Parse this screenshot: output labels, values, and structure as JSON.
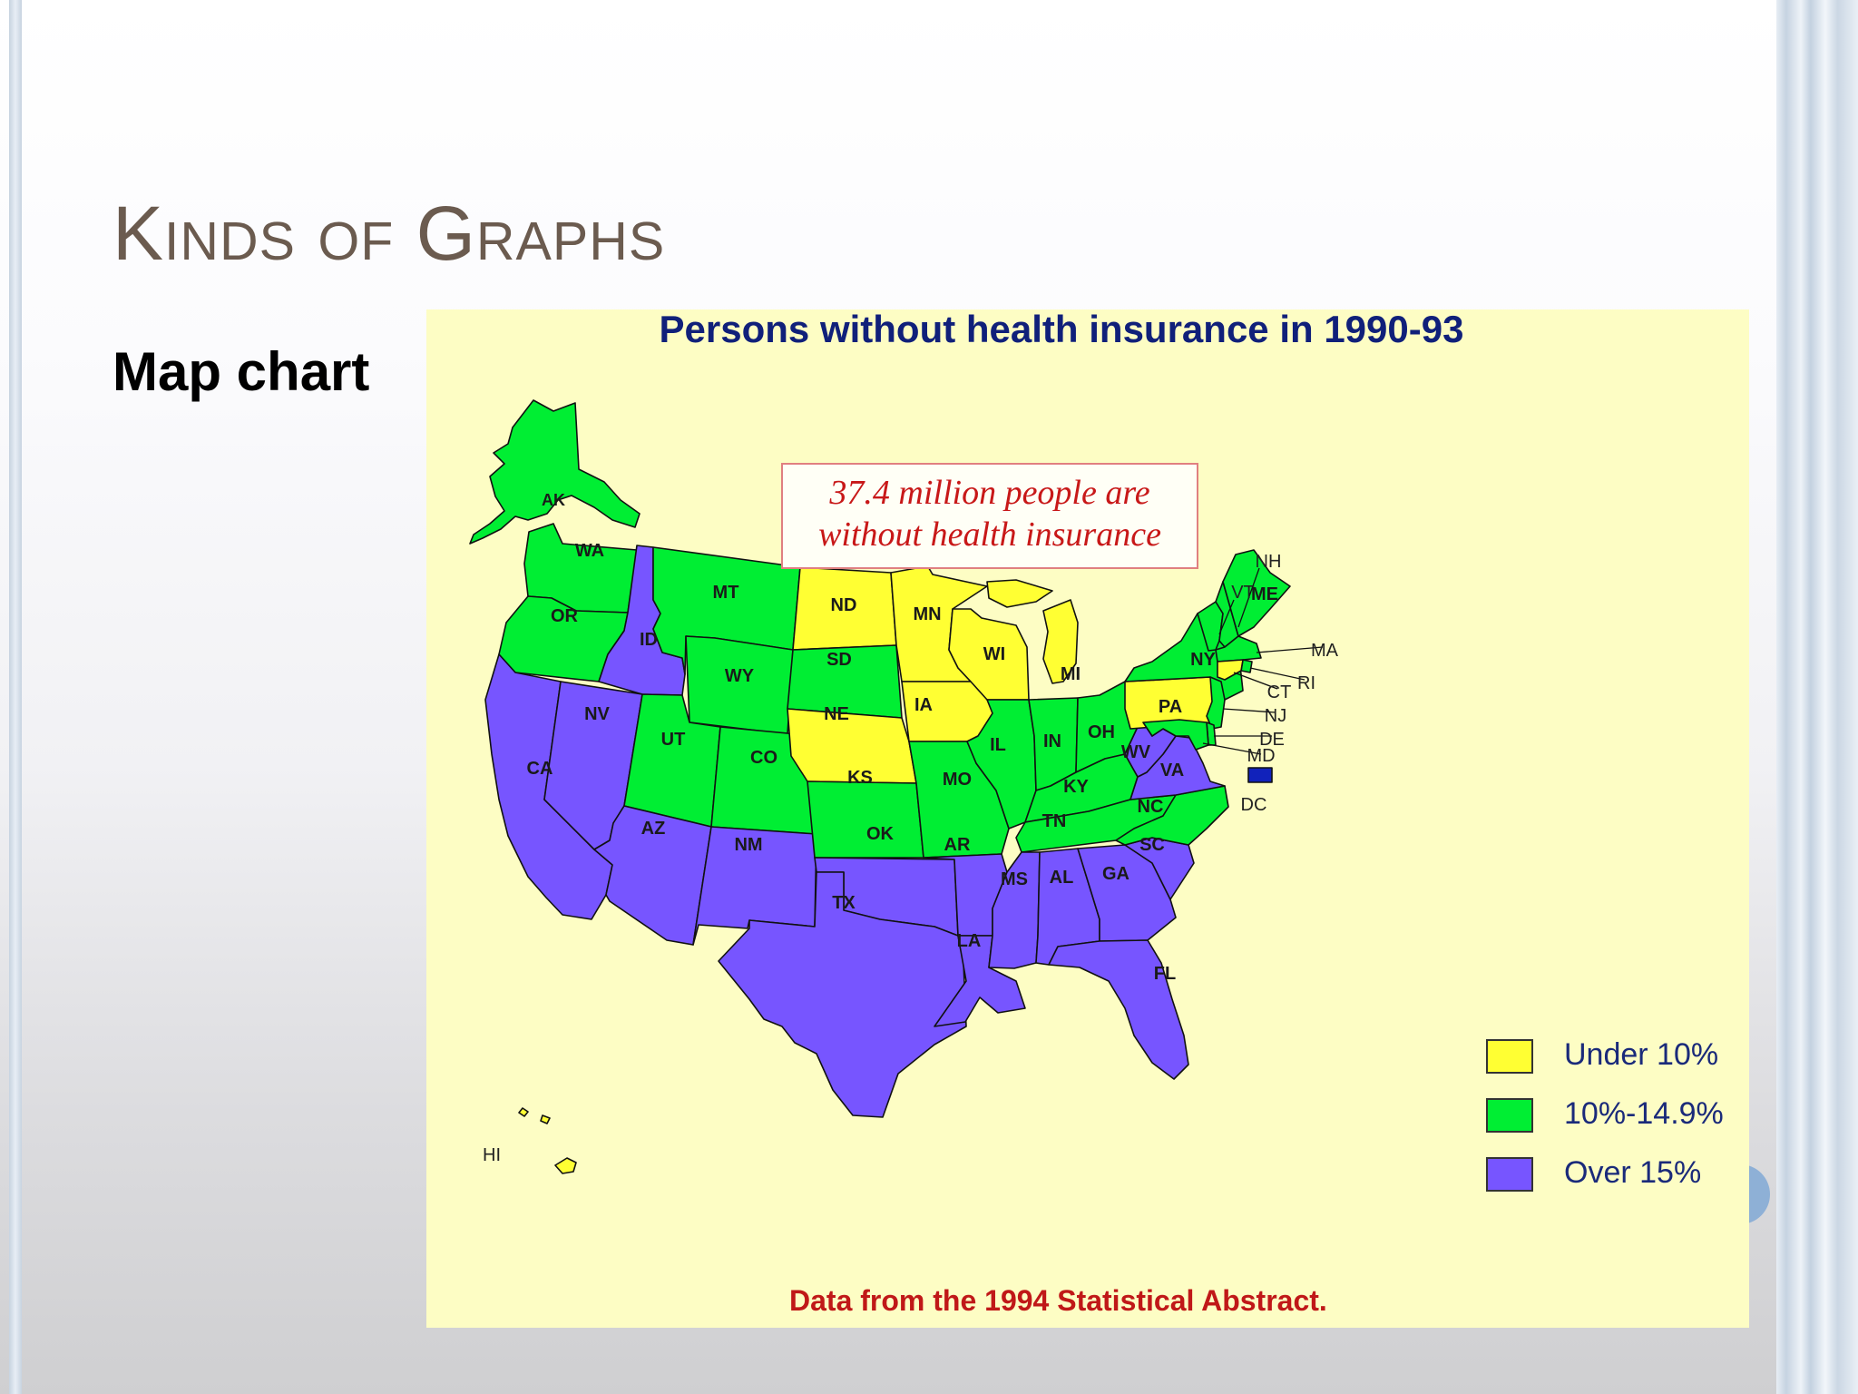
{
  "slide": {
    "title": "Kinds of Graphs",
    "subtitle": "Map chart"
  },
  "map": {
    "title": "Persons without health insurance in 1990-93",
    "callout_line1": "37.4 million people are",
    "callout_line2": "without health insurance",
    "source": "Data from the 1994 Statistical Abstract.",
    "colors": {
      "under10": "#ffff33",
      "mid": "#00ee33",
      "over15": "#7755ff",
      "dc": "#1122bb",
      "background": "#fdfdc4"
    },
    "legend": [
      {
        "label": "Under 10%",
        "category": "under10"
      },
      {
        "label": "10%-14.9%",
        "category": "mid"
      },
      {
        "label": "Over 15%",
        "category": "over15"
      }
    ],
    "states": [
      {
        "abbr": "AK",
        "category": "mid"
      },
      {
        "abbr": "HI",
        "category": "under10"
      },
      {
        "abbr": "WA",
        "category": "mid"
      },
      {
        "abbr": "OR",
        "category": "mid"
      },
      {
        "abbr": "CA",
        "category": "over15"
      },
      {
        "abbr": "NV",
        "category": "over15"
      },
      {
        "abbr": "ID",
        "category": "over15"
      },
      {
        "abbr": "MT",
        "category": "mid"
      },
      {
        "abbr": "WY",
        "category": "mid"
      },
      {
        "abbr": "UT",
        "category": "mid"
      },
      {
        "abbr": "CO",
        "category": "mid"
      },
      {
        "abbr": "AZ",
        "category": "over15"
      },
      {
        "abbr": "NM",
        "category": "over15"
      },
      {
        "abbr": "ND",
        "category": "under10"
      },
      {
        "abbr": "SD",
        "category": "mid"
      },
      {
        "abbr": "NE",
        "category": "under10"
      },
      {
        "abbr": "KS",
        "category": "mid"
      },
      {
        "abbr": "OK",
        "category": "over15"
      },
      {
        "abbr": "TX",
        "category": "over15"
      },
      {
        "abbr": "MN",
        "category": "under10"
      },
      {
        "abbr": "IA",
        "category": "under10"
      },
      {
        "abbr": "MO",
        "category": "mid"
      },
      {
        "abbr": "AR",
        "category": "over15"
      },
      {
        "abbr": "LA",
        "category": "over15"
      },
      {
        "abbr": "WI",
        "category": "under10"
      },
      {
        "abbr": "IL",
        "category": "mid"
      },
      {
        "abbr": "MI",
        "category": "under10"
      },
      {
        "abbr": "IN",
        "category": "mid"
      },
      {
        "abbr": "OH",
        "category": "mid"
      },
      {
        "abbr": "KY",
        "category": "mid"
      },
      {
        "abbr": "TN",
        "category": "mid"
      },
      {
        "abbr": "MS",
        "category": "over15"
      },
      {
        "abbr": "AL",
        "category": "over15"
      },
      {
        "abbr": "GA",
        "category": "over15"
      },
      {
        "abbr": "FL",
        "category": "over15"
      },
      {
        "abbr": "SC",
        "category": "over15"
      },
      {
        "abbr": "NC",
        "category": "mid"
      },
      {
        "abbr": "VA",
        "category": "over15"
      },
      {
        "abbr": "WV",
        "category": "over15"
      },
      {
        "abbr": "PA",
        "category": "under10"
      },
      {
        "abbr": "NY",
        "category": "mid"
      },
      {
        "abbr": "VT",
        "category": "mid"
      },
      {
        "abbr": "NH",
        "category": "mid"
      },
      {
        "abbr": "ME",
        "category": "mid"
      },
      {
        "abbr": "MA",
        "category": "mid"
      },
      {
        "abbr": "RI",
        "category": "mid"
      },
      {
        "abbr": "CT",
        "category": "under10"
      },
      {
        "abbr": "NJ",
        "category": "mid"
      },
      {
        "abbr": "DE",
        "category": "mid"
      },
      {
        "abbr": "MD",
        "category": "mid"
      },
      {
        "abbr": "DC",
        "category": "dc"
      }
    ]
  }
}
